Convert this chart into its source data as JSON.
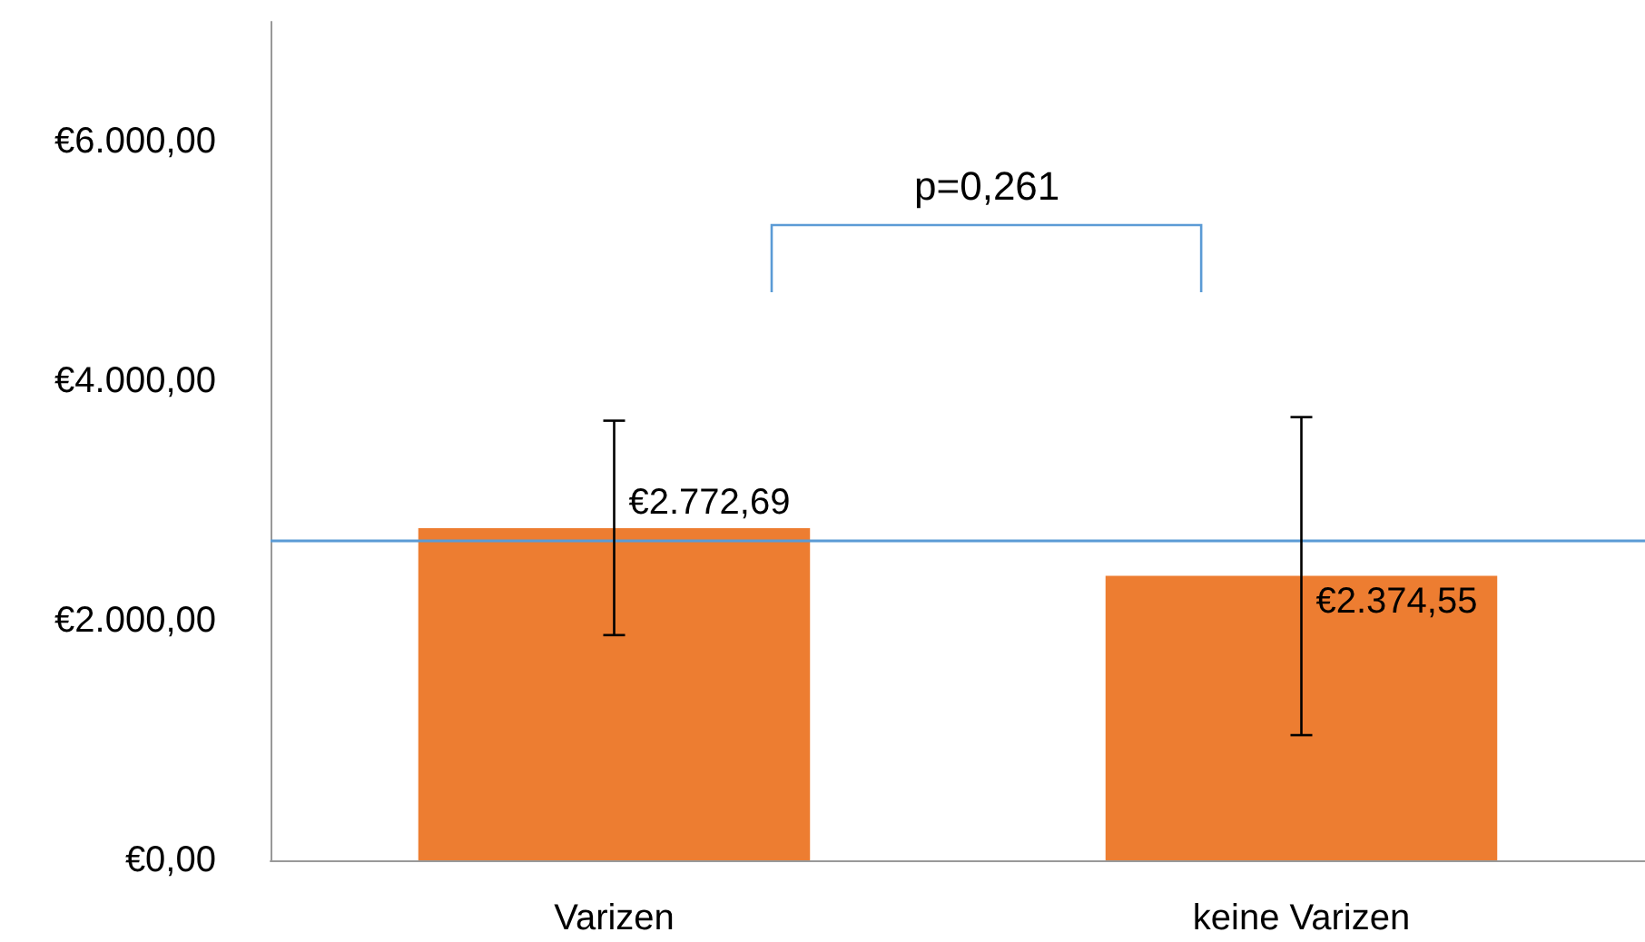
{
  "chart_data": {
    "type": "bar",
    "categories": [
      "Varizen",
      "keine Varizen"
    ],
    "values": [
      2772.69,
      2374.55
    ],
    "color": "#ed7d31",
    "errors": [
      [
        1880,
        3670
      ],
      [
        1045,
        3700
      ]
    ],
    "value_labels": [
      "€2.772,69",
      "€2.374,55"
    ],
    "ylim": [
      0,
      7000
    ],
    "yticks": [
      {
        "value": 0,
        "label": "€0,00"
      },
      {
        "value": 2000,
        "label": "€2.000,00"
      },
      {
        "value": 4000,
        "label": "€4.000,00"
      },
      {
        "value": 6000,
        "label": "€6.000,00"
      }
    ],
    "ref_lines": [
      {
        "axis": "y",
        "value": 2670,
        "color": "#5b9bd5"
      }
    ],
    "annotations": [
      "p=0,261"
    ],
    "grid": false
  }
}
